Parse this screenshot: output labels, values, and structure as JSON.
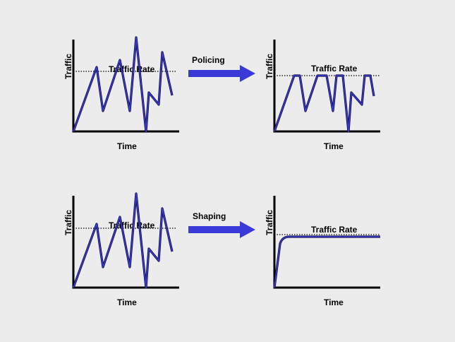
{
  "colors": {
    "background": "#ececec",
    "trace": "#3a3ad8",
    "arrow": "#3a3ad8",
    "axis": "#000000"
  },
  "labels": {
    "traffic": "Traffic",
    "time": "Time",
    "traffic_rate": "Traffic Rate",
    "policing": "Policing",
    "shaping": "Shaping"
  },
  "rows": [
    {
      "name": "policing",
      "arrow_label": "Policing",
      "result": "clipped-at-rate"
    },
    {
      "name": "shaping",
      "arrow_label": "Shaping",
      "result": "smoothed-to-rate"
    }
  ]
}
